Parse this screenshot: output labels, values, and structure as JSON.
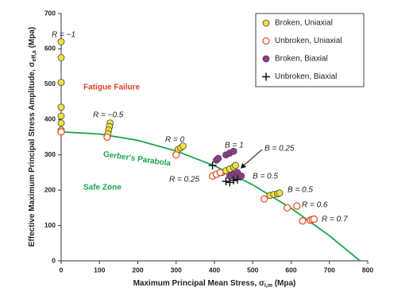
{
  "chart_data": {
    "type": "scatter",
    "x_label": {
      "main": "Maximum Principal Mean Stress, σ",
      "sub": "I,m",
      "tail": " (Mpa)"
    },
    "y_label": {
      "main": "Effective Maximum Principal Stress Amplitude, σ",
      "sub": "eff,a",
      "tail": " (Mpa)"
    },
    "xlim": [
      0,
      800
    ],
    "xticks": [
      0,
      100,
      200,
      300,
      400,
      500,
      600,
      700,
      800
    ],
    "ylim": [
      0,
      700
    ],
    "yticks": [
      0,
      100,
      200,
      300,
      400,
      500,
      600,
      700
    ],
    "grid": false,
    "legend": "upper right",
    "curve": {
      "color": "#1aa64a",
      "x": [
        0,
        100,
        200,
        300,
        400,
        500,
        600,
        700,
        780
      ],
      "values": [
        365,
        359,
        341,
        311,
        269,
        215,
        149,
        71,
        0
      ]
    },
    "series": [
      {
        "name": "Broken, Uniaxial",
        "marker": "filled",
        "color": "#f2e23c",
        "x": [
          0,
          0,
          0,
          0,
          0,
          0,
          0,
          128,
          126,
          124,
          122,
          305,
          312,
          318,
          420,
          430,
          440,
          450,
          455,
          545,
          555,
          565,
          570
        ],
        "values": [
          620,
          575,
          505,
          435,
          410,
          390,
          370,
          390,
          380,
          370,
          360,
          315,
          320,
          325,
          250,
          255,
          260,
          265,
          270,
          185,
          188,
          190,
          192
        ]
      },
      {
        "name": "Unbroken, Uniaxial",
        "marker": "open",
        "color": "#e8502a",
        "x": [
          0,
          120,
          300,
          395,
          405,
          415,
          530,
          590,
          615,
          630,
          650,
          655,
          660
        ],
        "values": [
          365,
          350,
          300,
          240,
          245,
          250,
          175,
          150,
          155,
          113,
          115,
          117,
          118
        ]
      },
      {
        "name": "Broken, Biaxial",
        "marker": "filled",
        "color": "#8e3a8e",
        "x": [
          405,
          410,
          430,
          440,
          450,
          440,
          450,
          460,
          470,
          455
        ],
        "values": [
          285,
          290,
          300,
          305,
          310,
          240,
          245,
          250,
          240,
          235
        ]
      },
      {
        "name": "Unbroken, Biaxial",
        "marker": "plus",
        "color": "#111111",
        "x": [
          395,
          430,
          440,
          450,
          460
        ],
        "values": [
          270,
          225,
          222,
          228,
          230
        ]
      }
    ],
    "annotations": [
      {
        "text": "R = −1",
        "color": "#222222"
      },
      {
        "text": "Fatigue Failure",
        "color": "#e0402a"
      },
      {
        "text": "R = −0.5",
        "color": "#222222"
      },
      {
        "text": "R = 0",
        "color": "#222222"
      },
      {
        "text": "Gerber's Parabola",
        "color": "#1aa64a"
      },
      {
        "text": "B = 1",
        "color": "#222222"
      },
      {
        "text": "B = 0.25",
        "color": "#222222"
      },
      {
        "text": "R = 0.25",
        "color": "#222222"
      },
      {
        "text": "B = 0.5",
        "color": "#222222"
      },
      {
        "text": "B = 0.5",
        "color": "#222222"
      },
      {
        "text": "R = 0.6",
        "color": "#222222"
      },
      {
        "text": "R = 0.7",
        "color": "#222222"
      },
      {
        "text": "Safe Zone",
        "color": "#1aa64a"
      }
    ]
  }
}
